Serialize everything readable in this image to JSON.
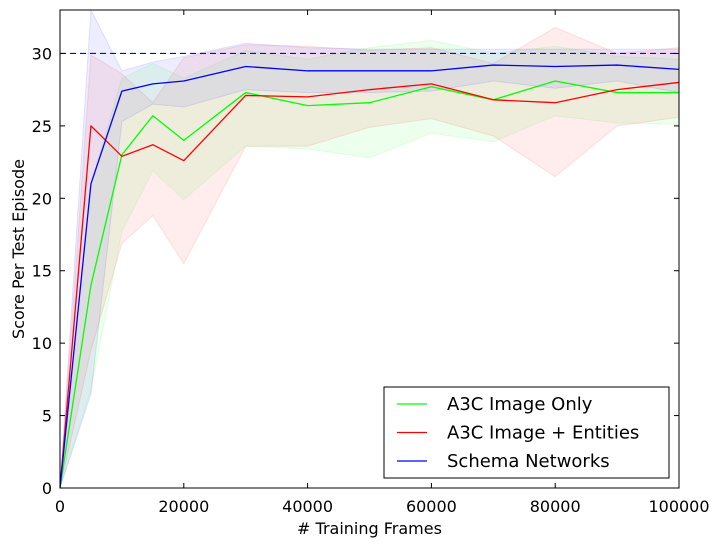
{
  "chart_data": {
    "type": "line",
    "xlabel": "# Training Frames",
    "ylabel": "Score Per Test Episode",
    "xlim": [
      0,
      100000
    ],
    "ylim": [
      0,
      33
    ],
    "xticks": [
      0,
      20000,
      40000,
      60000,
      80000,
      100000
    ],
    "yticks": [
      0,
      5,
      10,
      15,
      20,
      25,
      30
    ],
    "grid": false,
    "legend_position": "lower-right",
    "reference_line": {
      "y": 30,
      "style": "dashed",
      "color": "#0000ff"
    },
    "series": [
      {
        "name": "A3C Image Only",
        "color": "#00ff00",
        "x": [
          0,
          5000,
          10000,
          15000,
          20000,
          30000,
          40000,
          50000,
          60000,
          70000,
          80000,
          90000,
          100000
        ],
        "y": [
          0,
          14,
          23,
          25.7,
          24,
          27.3,
          26.4,
          26.6,
          27.7,
          26.8,
          28.1,
          27.3,
          27.3
        ],
        "upper": [
          0,
          21,
          28.3,
          29.3,
          28.3,
          30.2,
          29.6,
          30.4,
          30.9,
          30,
          30.5,
          29.8,
          29.6
        ],
        "lower": [
          0,
          6.8,
          17.7,
          21.9,
          19.9,
          23.6,
          23.4,
          22.8,
          24.5,
          23.9,
          25.7,
          25.2,
          25.1
        ]
      },
      {
        "name": "A3C Image + Entities",
        "color": "#ff0000",
        "x": [
          0,
          5000,
          10000,
          15000,
          20000,
          30000,
          40000,
          50000,
          60000,
          70000,
          80000,
          90000,
          100000
        ],
        "y": [
          0,
          25,
          22.9,
          23.7,
          22.6,
          27.1,
          27,
          27.5,
          27.9,
          26.8,
          26.6,
          27.5,
          28
        ],
        "upper": [
          0,
          29.9,
          28.6,
          26.6,
          29.7,
          30.6,
          30.5,
          30.2,
          30.4,
          29.3,
          31.8,
          30,
          30.4
        ],
        "lower": [
          0,
          9.5,
          16.9,
          18.8,
          15.5,
          23.6,
          23.6,
          24.9,
          25.5,
          24.3,
          21.5,
          25,
          25.6
        ]
      },
      {
        "name": "Schema Networks",
        "color": "#0000ff",
        "x": [
          0,
          5000,
          10000,
          15000,
          20000,
          30000,
          40000,
          50000,
          60000,
          70000,
          80000,
          90000,
          100000
        ],
        "y": [
          0,
          21,
          27.4,
          27.9,
          28.1,
          29.1,
          28.8,
          28.8,
          28.8,
          29.2,
          29.1,
          29.2,
          28.9
        ],
        "upper": [
          0,
          33,
          28.8,
          29.4,
          29.8,
          30.7,
          30.4,
          30.3,
          30.3,
          30.3,
          30.3,
          30.3,
          30.3
        ],
        "lower": [
          0,
          6.5,
          25.3,
          26.5,
          26.3,
          27.5,
          27.3,
          27.3,
          27.4,
          28.1,
          27.6,
          28.1,
          27.3
        ]
      }
    ]
  }
}
